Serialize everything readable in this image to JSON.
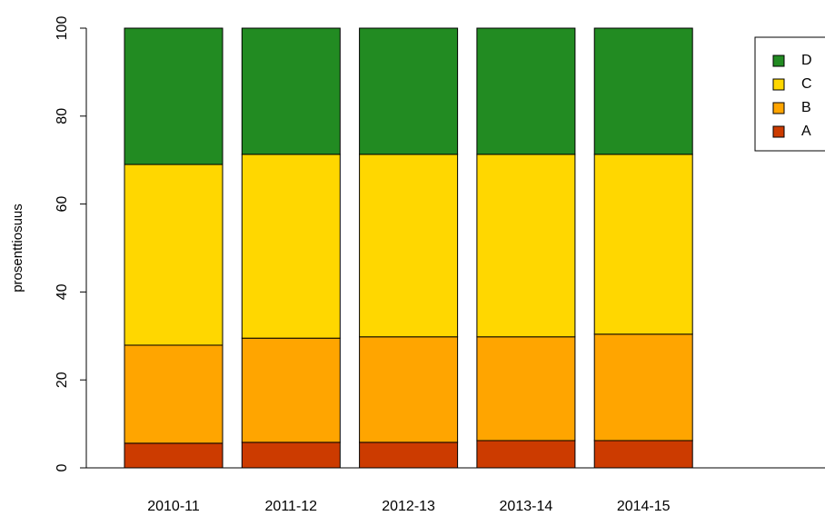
{
  "chart_data": {
    "type": "bar",
    "stacked": true,
    "y_label": "prosenttiosuus",
    "categories": [
      "2010-11",
      "2011-12",
      "2012-13",
      "2013-14",
      "2014-15"
    ],
    "series": [
      {
        "name": "A",
        "color": "#cc3b00",
        "values": [
          5.6,
          5.8,
          5.8,
          6.2,
          6.2
        ]
      },
      {
        "name": "B",
        "color": "#ffa500",
        "values": [
          22.3,
          23.7,
          24.0,
          23.6,
          24.2
        ]
      },
      {
        "name": "C",
        "color": "#ffd700",
        "values": [
          41.1,
          41.8,
          41.5,
          41.5,
          40.9
        ]
      },
      {
        "name": "D",
        "color": "#228b22",
        "values": [
          31.0,
          28.7,
          28.7,
          28.7,
          28.7
        ]
      }
    ],
    "ylim": [
      0,
      100
    ],
    "yticks": [
      0,
      20,
      40,
      60,
      80,
      100
    ],
    "legend": "top-right"
  }
}
